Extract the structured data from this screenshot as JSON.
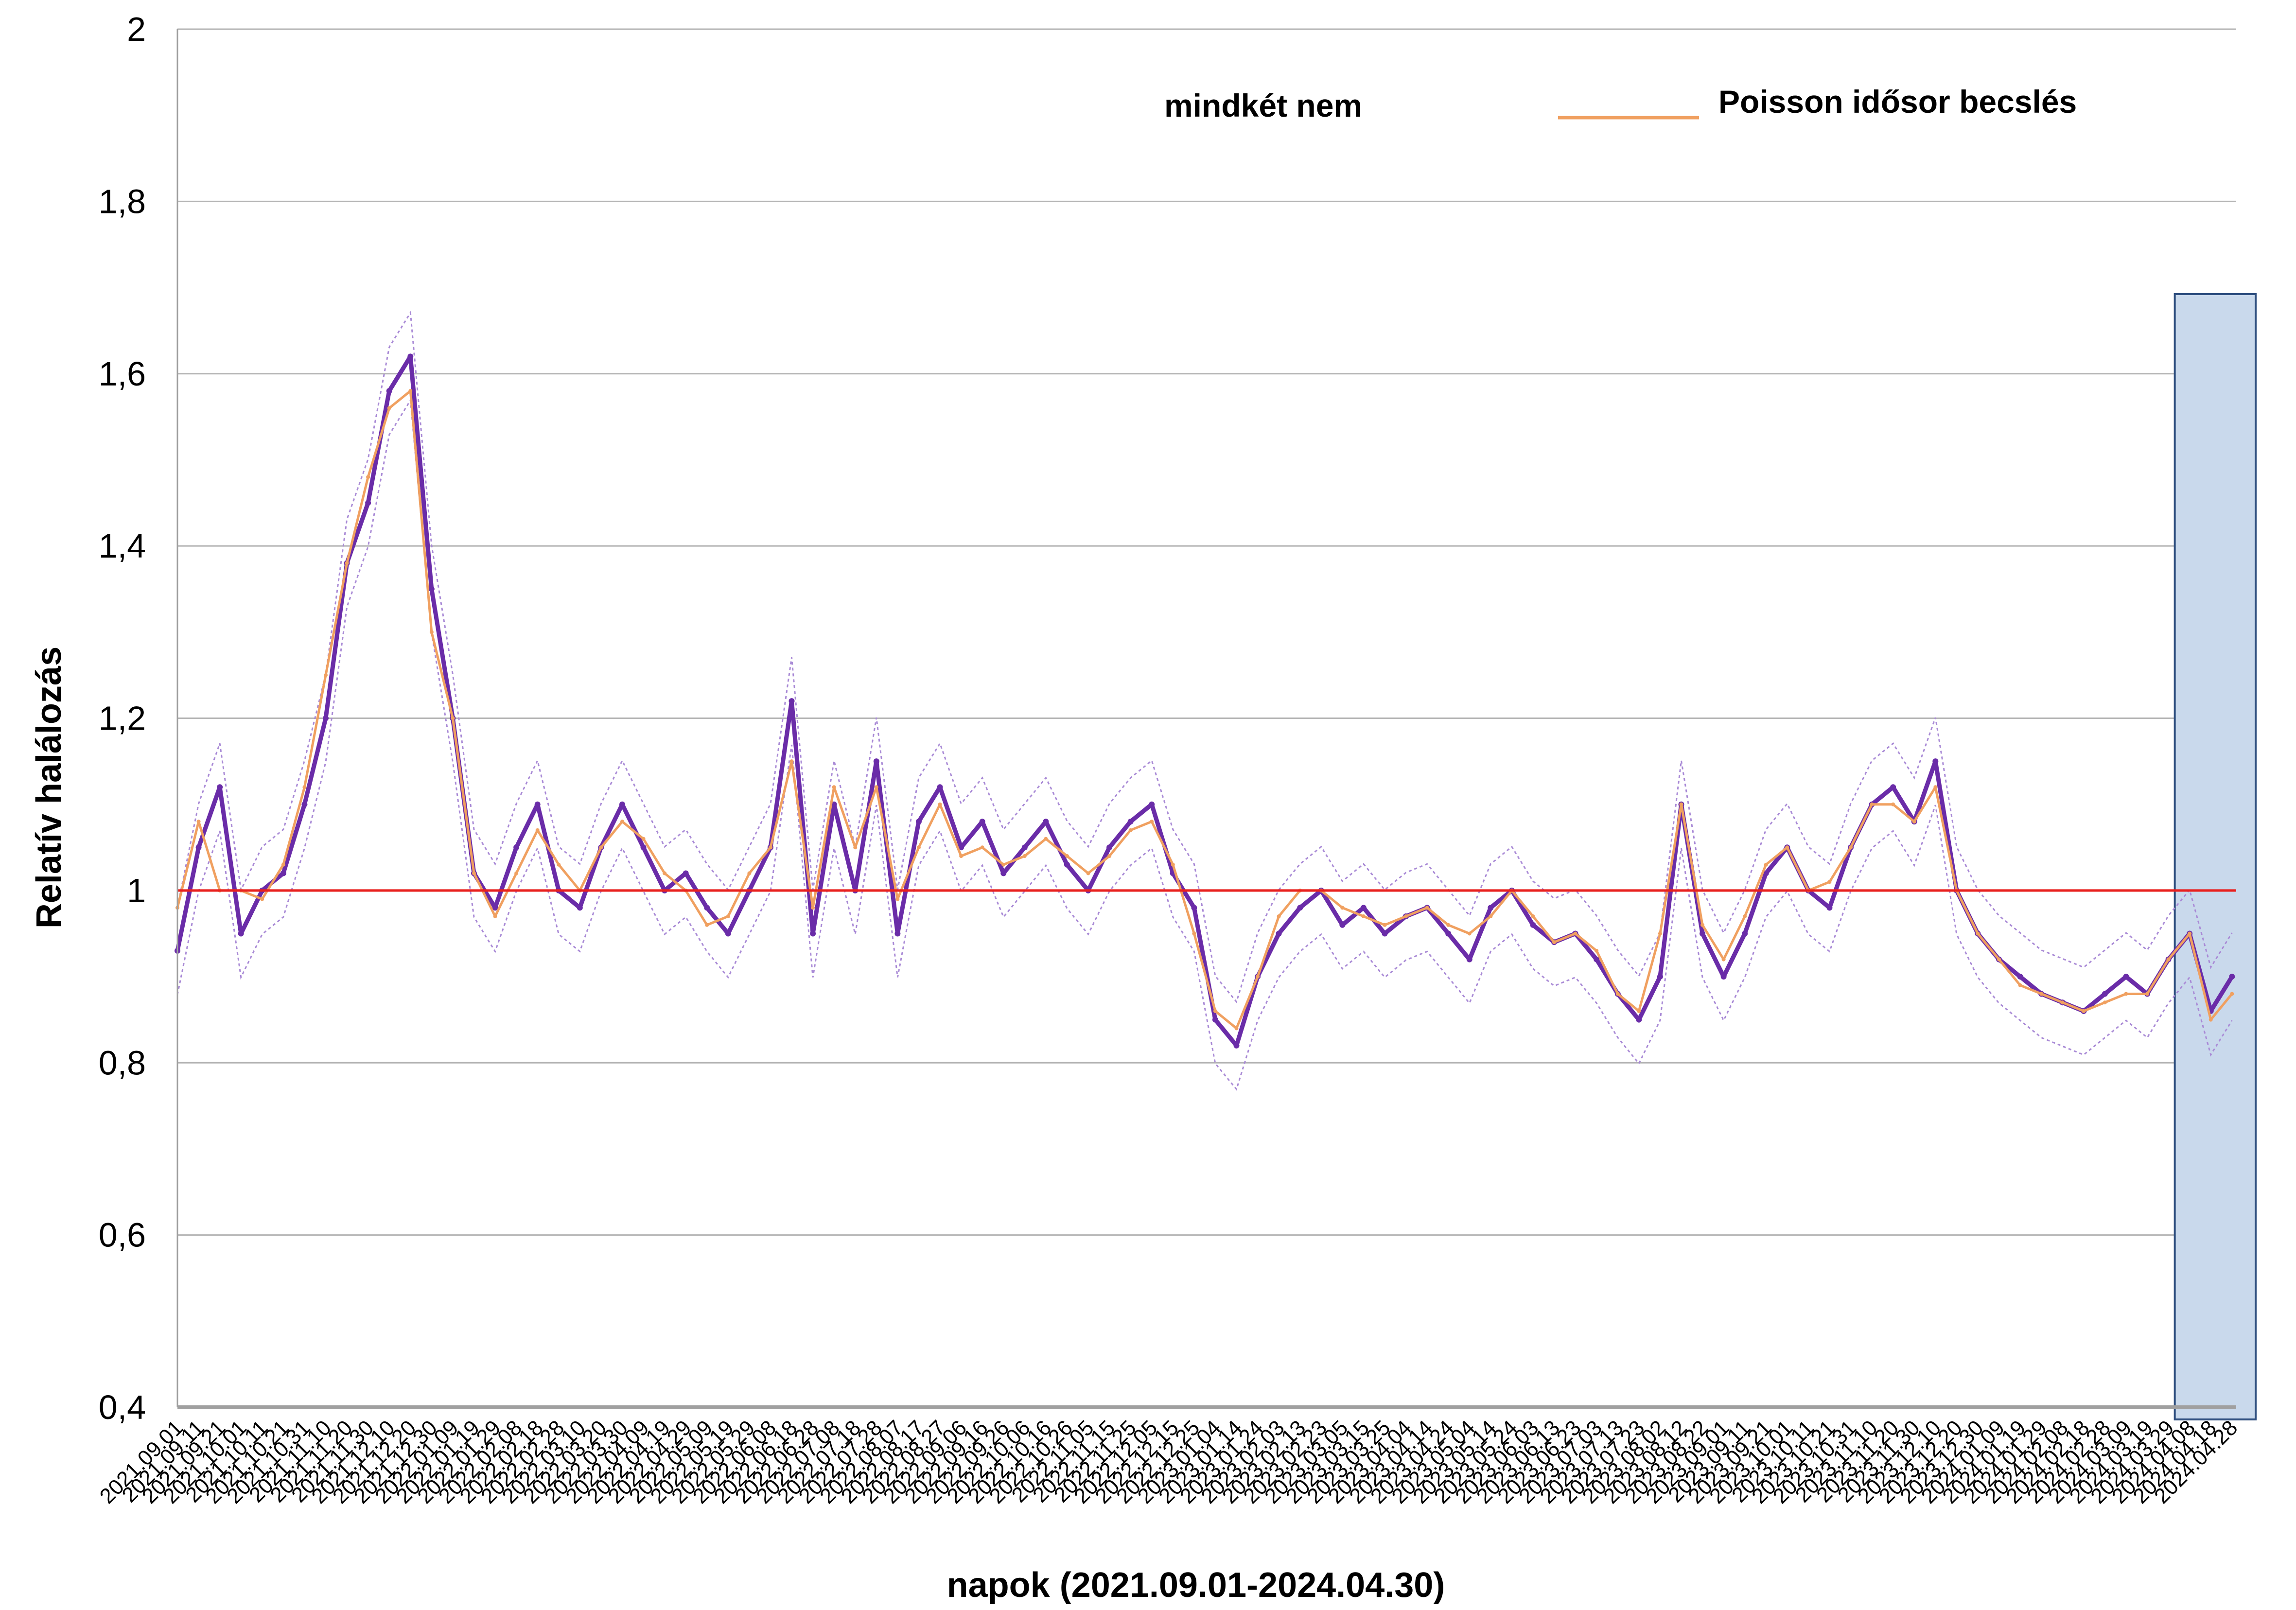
{
  "chart_data": {
    "type": "line",
    "title": "",
    "xlabel": "napok (2021.09.01-2024.04.30)",
    "ylabel": "Relatív halálozás",
    "x_range": [
      "2021.09.01",
      "2024.04.30"
    ],
    "ylim": [
      0.4,
      2.0
    ],
    "yticks": [
      "0,4",
      "0,6",
      "0,8",
      "1",
      "1,2",
      "1,4",
      "1,6",
      "1,8",
      "2"
    ],
    "ytick_values": [
      0.4,
      0.6,
      0.8,
      1.0,
      1.2,
      1.4,
      1.6,
      1.8,
      2.0
    ],
    "grid": true,
    "reference_line": {
      "y": 1.0,
      "color": "#e8201e"
    },
    "legend": {
      "placement": "top-center",
      "entries": [
        {
          "label": "mindkét nem",
          "color": "#6a2ca8"
        },
        {
          "label": "Poisson idősor becslés",
          "color": "#f0a060"
        }
      ]
    },
    "highlight_band": {
      "x_start": "2024.04.01",
      "x_end": "2024.04.30",
      "color": "#c9d9ec"
    },
    "xticks": [
      "2021.09.01",
      "2021.09.11",
      "2021.09.21",
      "2021.10.01",
      "2021.10.11",
      "2021.10.21",
      "2021.10.31",
      "2021.11.10",
      "2021.11.20",
      "2021.11.30",
      "2021.12.10",
      "2021.12.20",
      "2021.12.30",
      "2022.01.09",
      "2022.01.19",
      "2022.01.29",
      "2022.02.08",
      "2022.02.18",
      "2022.02.28",
      "2022.03.10",
      "2022.03.20",
      "2022.03.30",
      "2022.04.09",
      "2022.04.19",
      "2022.04.29",
      "2022.05.09",
      "2022.05.19",
      "2022.05.29",
      "2022.06.08",
      "2022.06.18",
      "2022.06.28",
      "2022.07.08",
      "2022.07.18",
      "2022.07.28",
      "2022.08.07",
      "2022.08.17",
      "2022.08.27",
      "2022.09.06",
      "2022.09.16",
      "2022.09.26",
      "2022.10.06",
      "2022.10.16",
      "2022.10.26",
      "2022.11.05",
      "2022.11.15",
      "2022.11.25",
      "2022.12.05",
      "2022.12.15",
      "2022.12.25",
      "2023.01.04",
      "2023.01.14",
      "2023.01.24",
      "2023.02.03",
      "2023.02.13",
      "2023.02.23",
      "2023.03.05",
      "2023.03.15",
      "2023.03.25",
      "2023.04.04",
      "2023.04.14",
      "2023.04.24",
      "2023.05.04",
      "2023.05.14",
      "2023.05.24",
      "2023.06.03",
      "2023.06.13",
      "2023.06.23",
      "2023.07.03",
      "2023.07.13",
      "2023.07.23",
      "2023.08.02",
      "2023.08.12",
      "2023.08.22",
      "2023.09.01",
      "2023.09.11",
      "2023.09.21",
      "2023.10.01",
      "2023.10.11",
      "2023.10.21",
      "2023.10.31",
      "2023.11.10",
      "2023.11.20",
      "2023.11.30",
      "2023.12.10",
      "2023.12.20",
      "2023.12.30",
      "2024.01.09",
      "2024.01.19",
      "2024.01.29",
      "2024.02.08",
      "2024.02.18",
      "2024.02.28",
      "2024.03.09",
      "2024.03.19",
      "2024.03.29",
      "2024.04.08",
      "2024.04.18",
      "2024.04.28"
    ],
    "series": [
      {
        "name": "mindkét nem",
        "kind": "observed",
        "sample_every_days": 10,
        "values": [
          0.93,
          1.05,
          1.12,
          0.95,
          1.0,
          1.02,
          1.1,
          1.2,
          1.38,
          1.45,
          1.58,
          1.62,
          1.35,
          1.2,
          1.02,
          0.98,
          1.05,
          1.1,
          1.0,
          0.98,
          1.05,
          1.1,
          1.05,
          1.0,
          1.02,
          0.98,
          0.95,
          1.0,
          1.05,
          1.22,
          0.95,
          1.1,
          1.0,
          1.15,
          0.95,
          1.08,
          1.12,
          1.05,
          1.08,
          1.02,
          1.05,
          1.08,
          1.03,
          1.0,
          1.05,
          1.08,
          1.1,
          1.02,
          0.98,
          0.85,
          0.82,
          0.9,
          0.95,
          0.98,
          1.0,
          0.96,
          0.98,
          0.95,
          0.97,
          0.98,
          0.95,
          0.92,
          0.98,
          1.0,
          0.96,
          0.94,
          0.95,
          0.92,
          0.88,
          0.85,
          0.9,
          1.1,
          0.95,
          0.9,
          0.95,
          1.02,
          1.05,
          1.0,
          0.98,
          1.05,
          1.1,
          1.12,
          1.08,
          1.15,
          1.0,
          0.95,
          0.92,
          0.9,
          0.88,
          0.87,
          0.86,
          0.88,
          0.9,
          0.88,
          0.92,
          0.95,
          0.86,
          0.9
        ]
      },
      {
        "name": "Poisson idősor becslés",
        "kind": "estimate",
        "sample_every_days": 10,
        "values": [
          0.98,
          1.08,
          1.0,
          1.0,
          0.99,
          1.03,
          1.12,
          1.25,
          1.38,
          1.48,
          1.56,
          1.58,
          1.3,
          1.2,
          1.02,
          0.97,
          1.02,
          1.07,
          1.03,
          1.0,
          1.05,
          1.08,
          1.06,
          1.02,
          1.0,
          0.96,
          0.97,
          1.02,
          1.05,
          1.15,
          0.98,
          1.12,
          1.05,
          1.12,
          0.99,
          1.05,
          1.1,
          1.04,
          1.05,
          1.03,
          1.04,
          1.06,
          1.04,
          1.02,
          1.04,
          1.07,
          1.08,
          1.03,
          0.95,
          0.86,
          0.84,
          0.9,
          0.97,
          1.0,
          1.0,
          0.98,
          0.97,
          0.96,
          0.97,
          0.98,
          0.96,
          0.95,
          0.97,
          1.0,
          0.97,
          0.94,
          0.95,
          0.93,
          0.88,
          0.86,
          0.95,
          1.1,
          0.96,
          0.92,
          0.97,
          1.03,
          1.05,
          1.0,
          1.01,
          1.05,
          1.1,
          1.1,
          1.08,
          1.12,
          1.0,
          0.95,
          0.92,
          0.89,
          0.88,
          0.87,
          0.86,
          0.87,
          0.88,
          0.88,
          0.92,
          0.95,
          0.85,
          0.88
        ]
      }
    ]
  }
}
